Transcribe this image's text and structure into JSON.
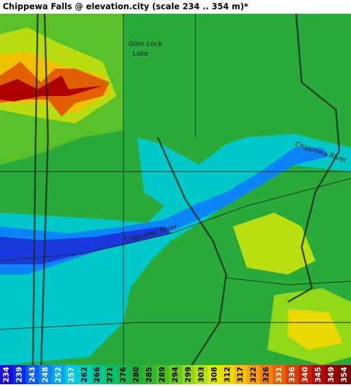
{
  "header": {
    "title": "Chippewa Falls @ elevation.city (scale 234 .. 354 m)*"
  },
  "map": {
    "labels": [
      "Glen Lock",
      "Lake",
      "Chippewa River",
      "Chippewa River"
    ]
  },
  "legend": {
    "items": [
      {
        "value": 234,
        "color": "#1a0fd0"
      },
      {
        "value": 239,
        "color": "#0a2cf0"
      },
      {
        "value": 243,
        "color": "#0a5af8"
      },
      {
        "value": 248,
        "color": "#0a86f8"
      },
      {
        "value": 252,
        "color": "#00a8f0"
      },
      {
        "value": 257,
        "color": "#00c8e0"
      },
      {
        "value": 262,
        "color": "#00d0c0"
      },
      {
        "value": 266,
        "color": "#00c898"
      },
      {
        "value": 271,
        "color": "#00c070"
      },
      {
        "value": 276,
        "color": "#10b850"
      },
      {
        "value": 280,
        "color": "#20b038"
      },
      {
        "value": 285,
        "color": "#30b828"
      },
      {
        "value": 289,
        "color": "#48c020"
      },
      {
        "value": 294,
        "color": "#68cc20"
      },
      {
        "value": 299,
        "color": "#90d818"
      },
      {
        "value": 303,
        "color": "#b8e010"
      },
      {
        "value": 308,
        "color": "#dce800"
      },
      {
        "value": 312,
        "color": "#f0d800"
      },
      {
        "value": 317,
        "color": "#f8bc00"
      },
      {
        "value": 322,
        "color": "#f8a000"
      },
      {
        "value": 326,
        "color": "#f08000"
      },
      {
        "value": 331,
        "color": "#e86000"
      },
      {
        "value": 336,
        "color": "#d84000"
      },
      {
        "value": 340,
        "color": "#c82000"
      },
      {
        "value": 345,
        "color": "#b00800"
      },
      {
        "value": 349,
        "color": "#980000"
      },
      {
        "value": 354,
        "color": "#800000"
      }
    ]
  }
}
